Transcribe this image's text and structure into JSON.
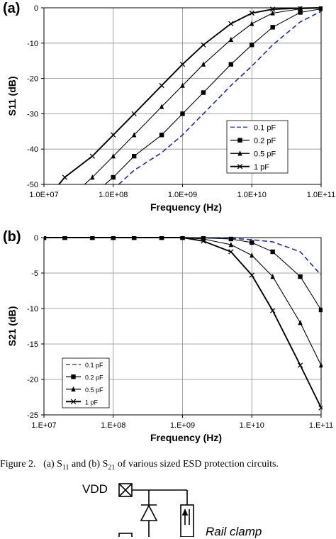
{
  "chart_data": [
    {
      "id": "a",
      "type": "line",
      "panel_label": "(a)",
      "title": "",
      "xlabel": "Frequency (Hz)",
      "ylabel": "S11 (dB)",
      "xscale": "log",
      "xlim": [
        10000000.0,
        100000000000.0
      ],
      "ylim": [
        -50,
        0
      ],
      "x_ticks": [
        "1.0E+07",
        "1.0E+08",
        "1.0E+09",
        "1.0E+10",
        "1.0E+11"
      ],
      "y_ticks": [
        "0",
        "-10",
        "-20",
        "-30",
        "-40",
        "-50"
      ],
      "grid": true,
      "legend_position": "bottom-right",
      "series": [
        {
          "name": "0.1 pF",
          "color": "#1f2f8f",
          "dash": true,
          "marker": "none",
          "x": [
            120000000.0,
            200000000.0,
            500000000.0,
            1000000000.0,
            2000000000.0,
            5000000000.0,
            10000000000.0,
            20000000000.0,
            50000000000.0,
            100000000000.0
          ],
          "y": [
            -50,
            -46,
            -41,
            -36,
            -30,
            -22,
            -16.5,
            -10.5,
            -4,
            -1
          ]
        },
        {
          "name": "0.2 pF",
          "color": "#000000",
          "dash": false,
          "marker": "square",
          "x": [
            50000000.0,
            100000000.0,
            200000000.0,
            500000000.0,
            1000000000.0,
            2000000000.0,
            5000000000.0,
            10000000000.0,
            20000000000.0,
            50000000000.0,
            100000000000.0
          ],
          "y": [
            -53,
            -48,
            -42,
            -36,
            -30,
            -24,
            -16,
            -10.5,
            -5.5,
            -1.3,
            -0.3
          ]
        },
        {
          "name": "0.5 pF",
          "color": "#000000",
          "dash": false,
          "marker": "triangle",
          "x": [
            20000000.0,
            50000000.0,
            100000000.0,
            200000000.0,
            500000000.0,
            1000000000.0,
            2000000000.0,
            5000000000.0,
            10000000000.0,
            20000000000.0,
            50000000000.0,
            100000000000.0
          ],
          "y": [
            -55,
            -48,
            -42,
            -36,
            -28,
            -22,
            -16,
            -9,
            -4.5,
            -1.5,
            -0.3,
            -0.1
          ]
        },
        {
          "name": "1 pF",
          "color": "#000000",
          "dash": false,
          "marker": "x",
          "x": [
            10000000.0,
            20000000.0,
            50000000.0,
            100000000.0,
            200000000.0,
            500000000.0,
            1000000000.0,
            2000000000.0,
            5000000000.0,
            10000000000.0,
            20000000000.0,
            50000000000.0,
            100000000000.0
          ],
          "y": [
            -55,
            -48,
            -42,
            -36,
            -30,
            -22,
            -16,
            -10.5,
            -4.5,
            -1.5,
            -0.4,
            -0.1,
            0
          ]
        }
      ]
    },
    {
      "id": "b",
      "type": "line",
      "panel_label": "(b)",
      "title": "",
      "xlabel": "Frequency (Hz)",
      "ylabel": "S21 (dB)",
      "xscale": "log",
      "xlim": [
        10000000.0,
        100000000000.0
      ],
      "ylim": [
        -25,
        0
      ],
      "x_ticks": [
        "1.E+07",
        "1.E+08",
        "1.E+09",
        "1.E+10",
        "1.E+11"
      ],
      "y_ticks": [
        "0",
        "-5",
        "-10",
        "-15",
        "-20",
        "-25"
      ],
      "grid": true,
      "legend_position": "bottom-left",
      "series": [
        {
          "name": "0.1 pF",
          "color": "#1f2f8f",
          "dash": true,
          "marker": "none",
          "x": [
            10000000.0,
            100000000.0,
            1000000000.0,
            2000000000.0,
            5000000000.0,
            10000000000.0,
            20000000000.0,
            50000000000.0,
            100000000000.0
          ],
          "y": [
            0,
            0,
            0,
            -0.05,
            -0.1,
            -0.3,
            -0.6,
            -2,
            -5.3
          ]
        },
        {
          "name": "0.2 pF",
          "color": "#000000",
          "dash": false,
          "marker": "square",
          "x": [
            10000000.0,
            20000000.0,
            50000000.0,
            100000000.0,
            200000000.0,
            500000000.0,
            1000000000.0,
            2000000000.0,
            5000000000.0,
            10000000000.0,
            20000000000.0,
            50000000000.0,
            100000000000.0
          ],
          "y": [
            0,
            0,
            0,
            0,
            0,
            0,
            0,
            -0.05,
            -0.2,
            -0.7,
            -2,
            -5.5,
            -10.2
          ]
        },
        {
          "name": "0.5 pF",
          "color": "#000000",
          "dash": false,
          "marker": "triangle",
          "x": [
            10000000.0,
            20000000.0,
            50000000.0,
            100000000.0,
            200000000.0,
            500000000.0,
            1000000000.0,
            2000000000.0,
            5000000000.0,
            10000000000.0,
            20000000000.0,
            50000000000.0,
            100000000000.0
          ],
          "y": [
            0,
            0,
            0,
            0,
            0,
            0,
            0,
            -0.2,
            -1,
            -2.5,
            -5.5,
            -12,
            -18
          ]
        },
        {
          "name": "1 pF",
          "color": "#000000",
          "dash": false,
          "marker": "x",
          "x": [
            10000000.0,
            20000000.0,
            50000000.0,
            100000000.0,
            200000000.0,
            500000000.0,
            1000000000.0,
            2000000000.0,
            5000000000.0,
            10000000000.0,
            20000000000.0,
            50000000000.0,
            100000000000.0
          ],
          "y": [
            0,
            0,
            0,
            0,
            0,
            0,
            0,
            -0.5,
            -2,
            -5.3,
            -10.3,
            -18,
            -24
          ]
        }
      ]
    }
  ],
  "caption": {
    "prefix": "Figure 2.",
    "text": "(a) S",
    "sub1": "11",
    "mid": " and (b) S",
    "sub2": "21",
    "suffix": " of various sized ESD protection circuits."
  },
  "circuit": {
    "vdd_label": "VDD",
    "rail_clamp_label": "Rail clamp"
  }
}
